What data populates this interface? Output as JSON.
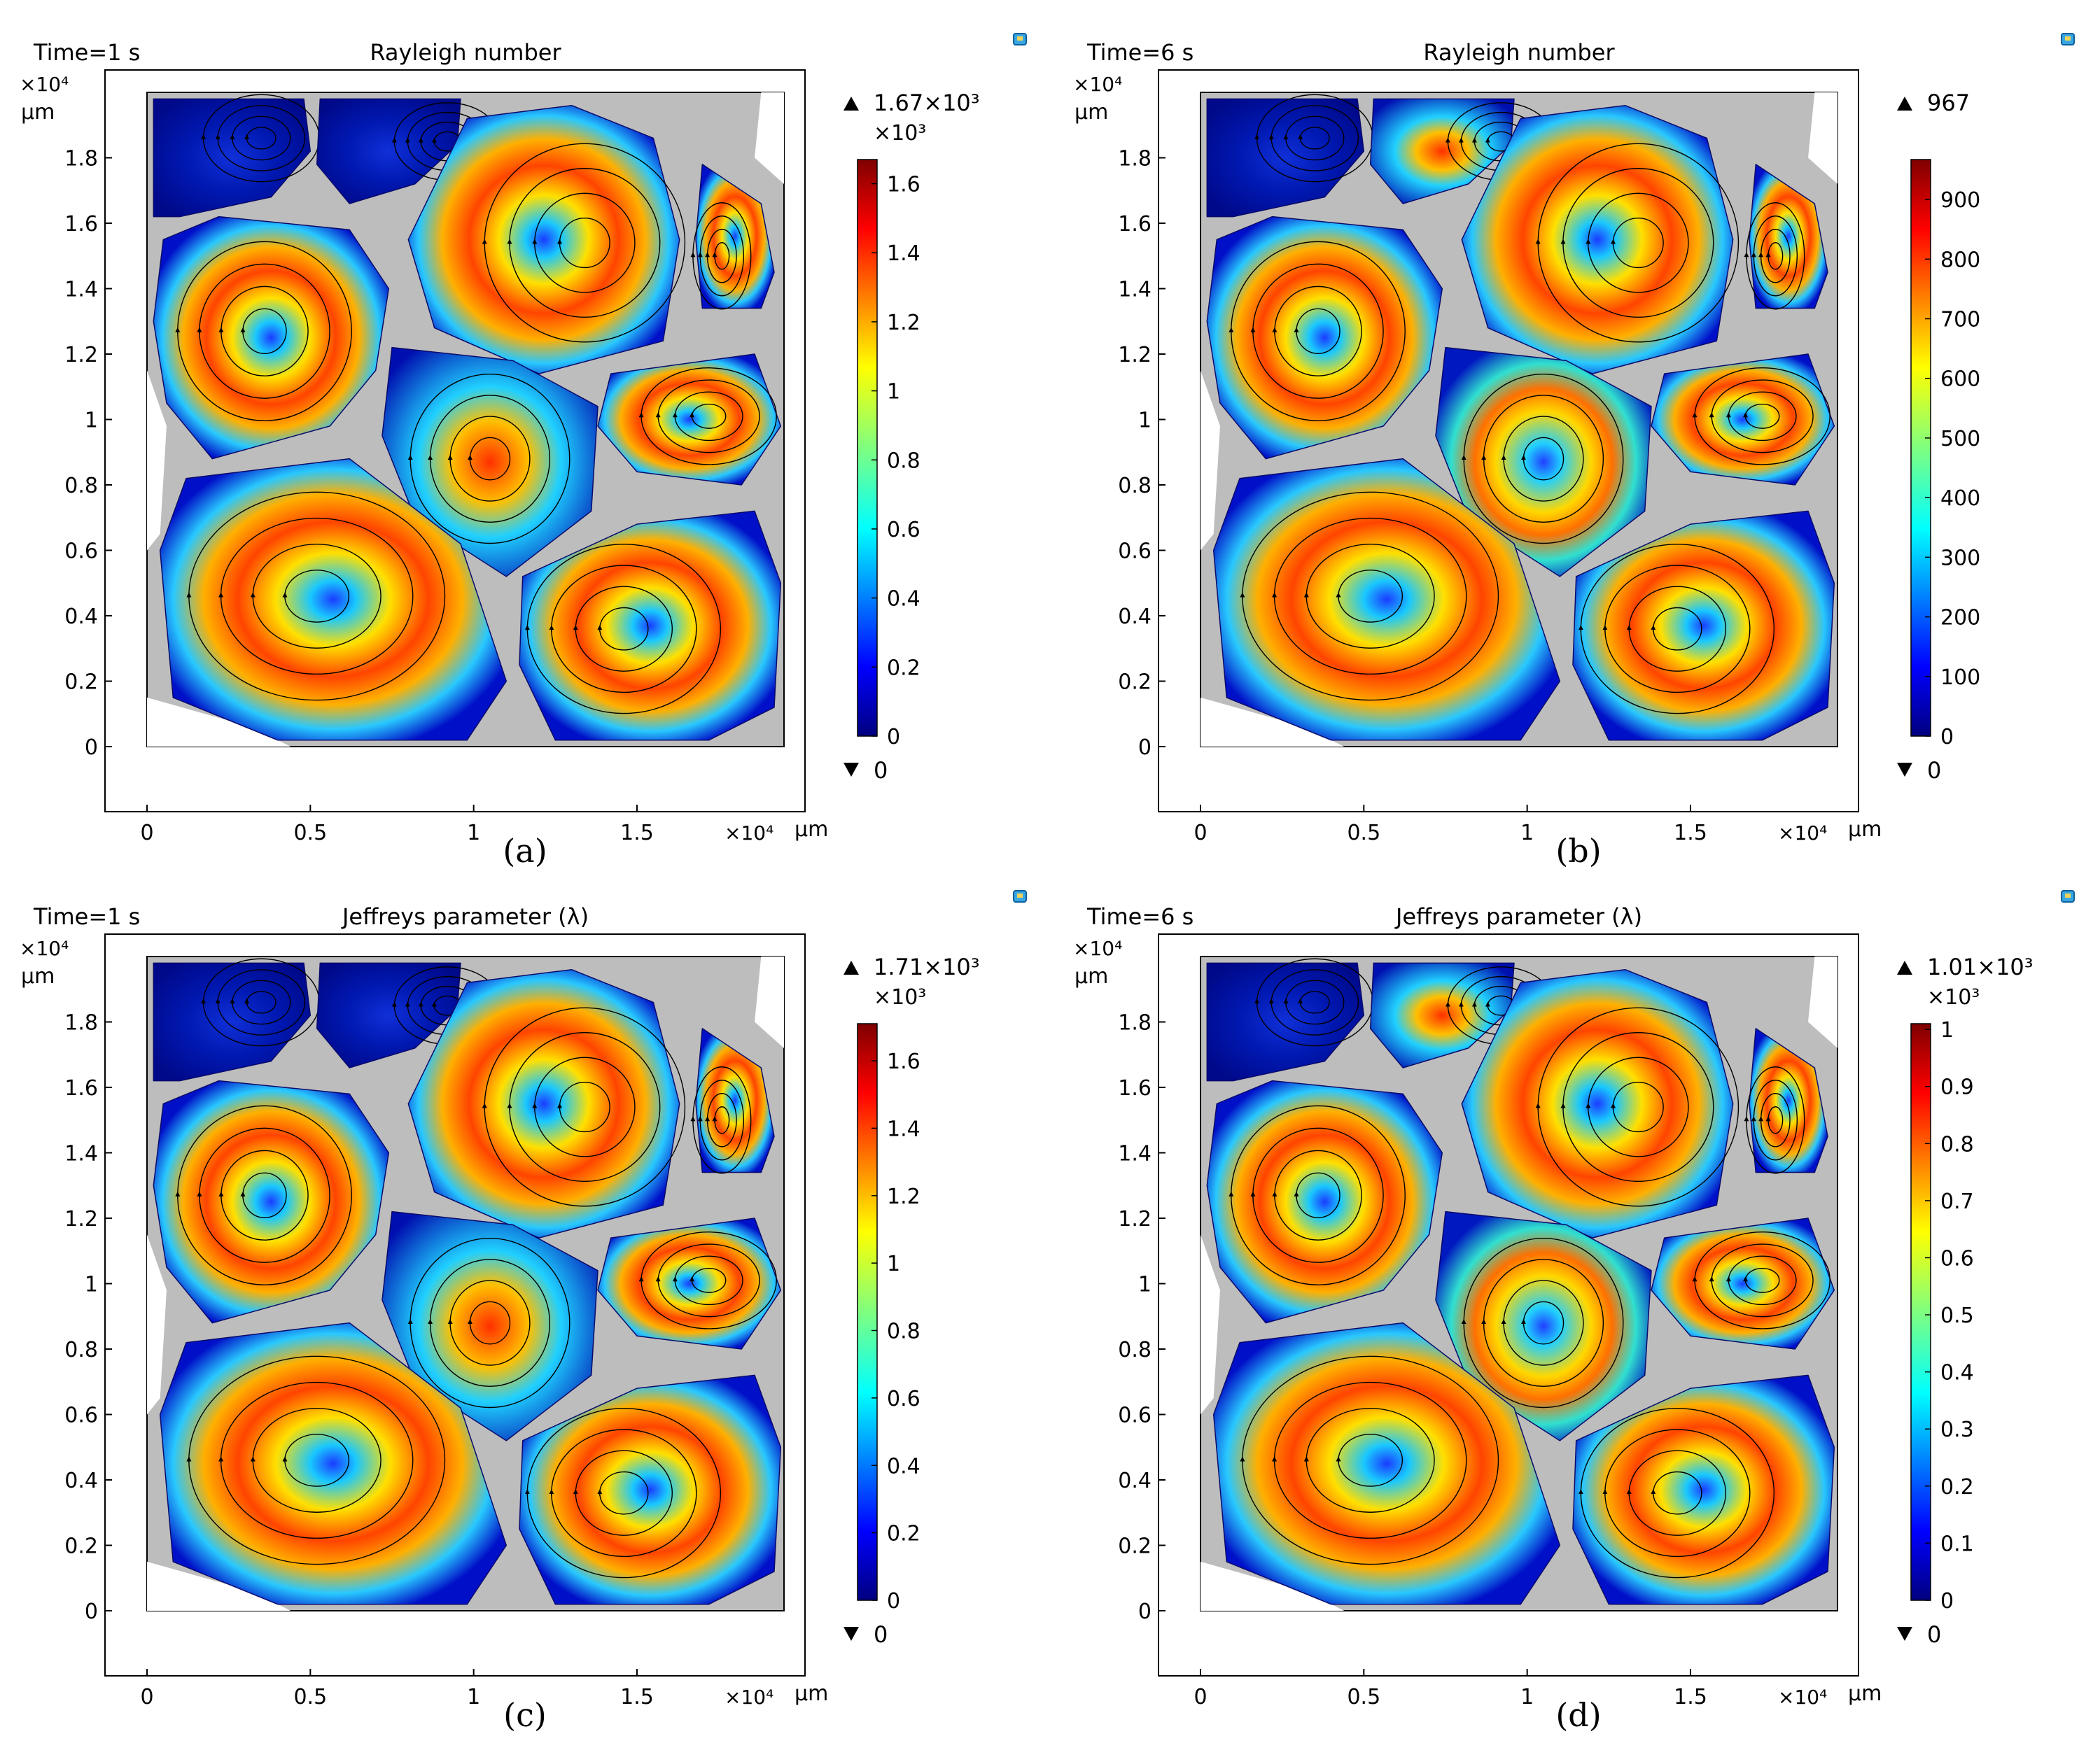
{
  "panels": [
    {
      "id": "a",
      "caption": "(a)",
      "time_label": "Time=1 s",
      "title": "Rayleigh number",
      "colorbar": {
        "max_label": "1.67×10³",
        "exponent_label": "×10³",
        "ticks": [
          "0",
          "0.2",
          "0.4",
          "0.6",
          "0.8",
          "1",
          "1.2",
          "1.4",
          "1.6"
        ],
        "tick_values": [
          0,
          0.2,
          0.4,
          0.6,
          0.8,
          1.0,
          1.2,
          1.4,
          1.6
        ],
        "max_value": 1.67,
        "min_label": "0"
      }
    },
    {
      "id": "b",
      "caption": "(b)",
      "time_label": "Time=6 s",
      "title": "Rayleigh number",
      "colorbar": {
        "max_label": "967",
        "exponent_label": "",
        "ticks": [
          "0",
          "100",
          "200",
          "300",
          "400",
          "500",
          "600",
          "700",
          "800",
          "900"
        ],
        "tick_values": [
          0,
          100,
          200,
          300,
          400,
          500,
          600,
          700,
          800,
          900
        ],
        "max_value": 967,
        "min_label": "0"
      }
    },
    {
      "id": "c",
      "caption": "(c)",
      "time_label": "Time=1 s",
      "title": "Jeffreys parameter (λ)",
      "colorbar": {
        "max_label": "1.71×10³",
        "exponent_label": "×10³",
        "ticks": [
          "0",
          "0.2",
          "0.4",
          "0.6",
          "0.8",
          "1",
          "1.2",
          "1.4",
          "1.6"
        ],
        "tick_values": [
          0,
          0.2,
          0.4,
          0.6,
          0.8,
          1.0,
          1.2,
          1.4,
          1.6
        ],
        "max_value": 1.71,
        "min_label": "0"
      }
    },
    {
      "id": "d",
      "caption": "(d)",
      "time_label": "Time=6 s",
      "title": "Jeffreys parameter (λ)",
      "colorbar": {
        "max_label": "1.01×10³",
        "exponent_label": "×10³",
        "ticks": [
          "0",
          "0.1",
          "0.2",
          "0.3",
          "0.4",
          "0.5",
          "0.6",
          "0.7",
          "0.8",
          "0.9",
          "1"
        ],
        "tick_values": [
          0,
          0.1,
          0.2,
          0.3,
          0.4,
          0.5,
          0.6,
          0.7,
          0.8,
          0.9,
          1.0
        ],
        "max_value": 1.01,
        "min_label": "0"
      }
    }
  ],
  "axes": {
    "x_ticks": [
      "0",
      "0.5",
      "1",
      "1.5"
    ],
    "x_tick_values": [
      0,
      0.5,
      1,
      1.5
    ],
    "x_exponent": "×10⁴",
    "x_unit": "μm",
    "y_ticks": [
      "0",
      "0.2",
      "0.4",
      "0.6",
      "0.8",
      "1",
      "1.2",
      "1.4",
      "1.6",
      "1.8"
    ],
    "y_tick_values": [
      0,
      0.2,
      0.4,
      0.6,
      0.8,
      1.0,
      1.2,
      1.4,
      1.6,
      1.8
    ],
    "y_exponent": "×10⁴",
    "y_unit": "μm"
  },
  "chart_data": [
    {
      "type": "heatmap",
      "panel": "a",
      "title": "Rayleigh number",
      "subtitle": "Time=1 s",
      "xlim": [
        0,
        1.95
      ],
      "ylim": [
        0,
        2.0
      ],
      "x_unit": "×10⁴ μm",
      "y_unit": "×10⁴ μm",
      "color_range": [
        0,
        1670
      ],
      "colormap": "jet",
      "streamlines": true
    },
    {
      "type": "heatmap",
      "panel": "b",
      "title": "Rayleigh number",
      "subtitle": "Time=6 s",
      "xlim": [
        0,
        1.95
      ],
      "ylim": [
        0,
        2.0
      ],
      "x_unit": "×10⁴ μm",
      "y_unit": "×10⁴ μm",
      "color_range": [
        0,
        967
      ],
      "colormap": "jet",
      "streamlines": true
    },
    {
      "type": "heatmap",
      "panel": "c",
      "title": "Jeffreys parameter (λ)",
      "subtitle": "Time=1 s",
      "xlim": [
        0,
        1.95
      ],
      "ylim": [
        0,
        2.0
      ],
      "x_unit": "×10⁴ μm",
      "y_unit": "×10⁴ μm",
      "color_range": [
        0,
        1710
      ],
      "colormap": "jet",
      "streamlines": true
    },
    {
      "type": "heatmap",
      "panel": "d",
      "title": "Jeffreys parameter (λ)",
      "subtitle": "Time=6 s",
      "xlim": [
        0,
        1.95
      ],
      "ylim": [
        0,
        2.0
      ],
      "x_unit": "×10⁴ μm",
      "y_unit": "×10⁴ μm",
      "color_range": [
        0,
        1010
      ],
      "colormap": "jet",
      "streamlines": true
    }
  ]
}
